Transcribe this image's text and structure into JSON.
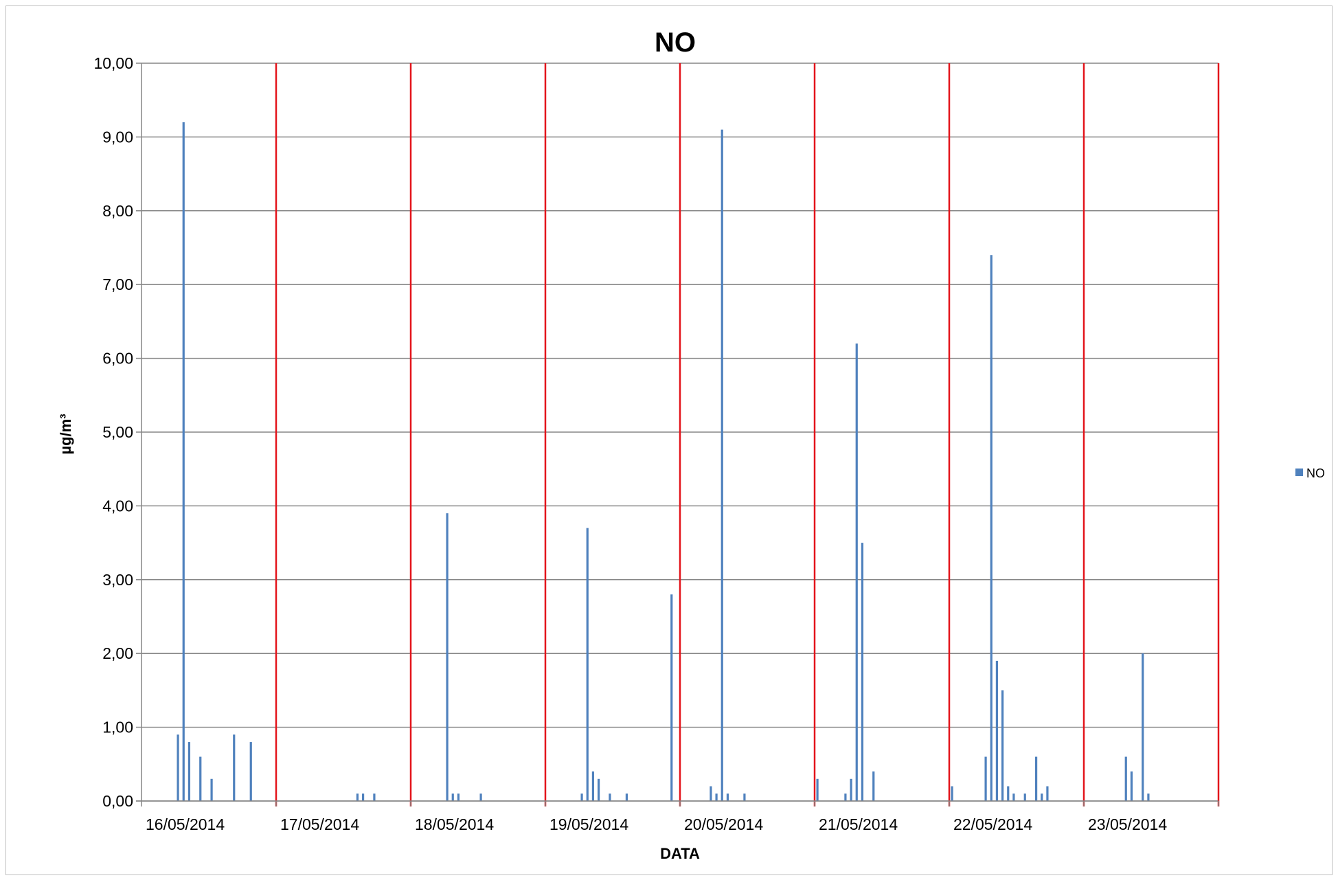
{
  "chart_data": {
    "type": "bar",
    "title": "NO",
    "xlabel": "DATA",
    "ylabel": "µg/m³",
    "ylim": [
      0,
      10
    ],
    "ytick_labels": [
      "0,00",
      "1,00",
      "2,00",
      "3,00",
      "4,00",
      "5,00",
      "6,00",
      "7,00",
      "8,00",
      "9,00",
      "10,00"
    ],
    "x_tick_labels": [
      "16/05/2014",
      "17/05/2014",
      "18/05/2014",
      "19/05/2014",
      "20/05/2014",
      "21/05/2014",
      "22/05/2014",
      "23/05/2014"
    ],
    "grid": true,
    "day_separators": true,
    "legend_position": "right",
    "colors": {
      "series": "#4f81bd",
      "separator": "#e3141b",
      "grid": "#868686",
      "axis": "#868686"
    },
    "series": [
      {
        "name": "NO",
        "points": [
          {
            "day": 0,
            "hour": 6,
            "value": 0.9
          },
          {
            "day": 0,
            "hour": 7,
            "value": 9.2
          },
          {
            "day": 0,
            "hour": 8,
            "value": 0.8
          },
          {
            "day": 0,
            "hour": 10,
            "value": 0.6
          },
          {
            "day": 0,
            "hour": 12,
            "value": 0.3
          },
          {
            "day": 0,
            "hour": 16,
            "value": 0.9
          },
          {
            "day": 0,
            "hour": 19,
            "value": 0.8
          },
          {
            "day": 1,
            "hour": 14,
            "value": 0.1
          },
          {
            "day": 1,
            "hour": 15,
            "value": 0.1
          },
          {
            "day": 1,
            "hour": 17,
            "value": 0.1
          },
          {
            "day": 2,
            "hour": 6,
            "value": 3.9
          },
          {
            "day": 2,
            "hour": 7,
            "value": 0.1
          },
          {
            "day": 2,
            "hour": 8,
            "value": 0.1
          },
          {
            "day": 2,
            "hour": 12,
            "value": 0.1
          },
          {
            "day": 3,
            "hour": 6,
            "value": 0.1
          },
          {
            "day": 3,
            "hour": 7,
            "value": 3.7
          },
          {
            "day": 3,
            "hour": 8,
            "value": 0.4
          },
          {
            "day": 3,
            "hour": 9,
            "value": 0.3
          },
          {
            "day": 3,
            "hour": 11,
            "value": 0.1
          },
          {
            "day": 3,
            "hour": 14,
            "value": 0.1
          },
          {
            "day": 3,
            "hour": 22,
            "value": 2.8
          },
          {
            "day": 4,
            "hour": 5,
            "value": 0.2
          },
          {
            "day": 4,
            "hour": 6,
            "value": 0.1
          },
          {
            "day": 4,
            "hour": 7,
            "value": 9.1
          },
          {
            "day": 4,
            "hour": 8,
            "value": 0.1
          },
          {
            "day": 4,
            "hour": 11,
            "value": 0.1
          },
          {
            "day": 5,
            "hour": 0,
            "value": 0.3
          },
          {
            "day": 5,
            "hour": 5,
            "value": 0.1
          },
          {
            "day": 5,
            "hour": 6,
            "value": 0.3
          },
          {
            "day": 5,
            "hour": 7,
            "value": 6.2
          },
          {
            "day": 5,
            "hour": 8,
            "value": 3.5
          },
          {
            "day": 5,
            "hour": 10,
            "value": 0.4
          },
          {
            "day": 6,
            "hour": 0,
            "value": 0.2
          },
          {
            "day": 6,
            "hour": 6,
            "value": 0.6
          },
          {
            "day": 6,
            "hour": 7,
            "value": 7.4
          },
          {
            "day": 6,
            "hour": 8,
            "value": 1.9
          },
          {
            "day": 6,
            "hour": 9,
            "value": 1.5
          },
          {
            "day": 6,
            "hour": 10,
            "value": 0.2
          },
          {
            "day": 6,
            "hour": 11,
            "value": 0.1
          },
          {
            "day": 6,
            "hour": 13,
            "value": 0.1
          },
          {
            "day": 6,
            "hour": 15,
            "value": 0.6
          },
          {
            "day": 6,
            "hour": 16,
            "value": 0.1
          },
          {
            "day": 6,
            "hour": 17,
            "value": 0.2
          },
          {
            "day": 7,
            "hour": 7,
            "value": 0.6
          },
          {
            "day": 7,
            "hour": 8,
            "value": 0.4
          },
          {
            "day": 7,
            "hour": 10,
            "value": 2.0
          },
          {
            "day": 7,
            "hour": 11,
            "value": 0.1
          }
        ]
      }
    ]
  }
}
